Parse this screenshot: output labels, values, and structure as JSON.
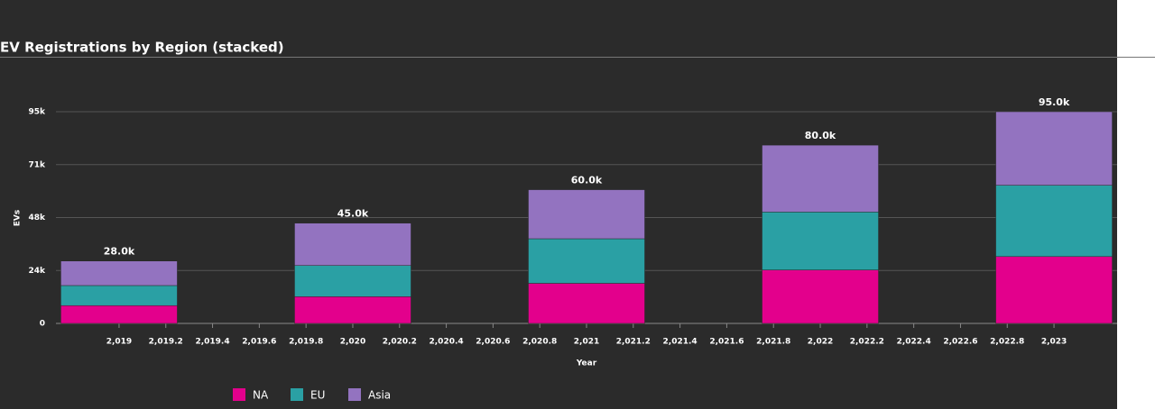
{
  "chart_data": {
    "type": "stacked_bar",
    "title": "EV Registrations by Region (stacked)",
    "x_label": "Year",
    "y_label": "EVs",
    "x": [
      2019,
      2020,
      2021,
      2022,
      2023
    ],
    "series": [
      {
        "name": "NA",
        "color": "#e3008c",
        "values": [
          8000,
          12000,
          18000,
          24000,
          30000
        ]
      },
      {
        "name": "EU",
        "color": "#2aa0a4",
        "values": [
          9000,
          14000,
          20000,
          26000,
          32000
        ]
      },
      {
        "name": "Asia",
        "color": "#9373c0",
        "values": [
          11000,
          19000,
          22000,
          30000,
          33000
        ]
      }
    ],
    "totals": [
      28000,
      45000,
      60000,
      80000,
      95000
    ],
    "total_labels": [
      "28.0k",
      "45.0k",
      "60.0k",
      "80.0k",
      "95.0k"
    ],
    "xlim": [
      2018.73,
      2023.27
    ],
    "ylim": [
      0,
      95000
    ],
    "xticks": [
      {
        "value": 2019,
        "label": "2,019"
      },
      {
        "value": 2019.2,
        "label": "2,019.2"
      },
      {
        "value": 2019.4,
        "label": "2,019.4"
      },
      {
        "value": 2019.6,
        "label": "2,019.6"
      },
      {
        "value": 2019.8,
        "label": "2,019.8"
      },
      {
        "value": 2020,
        "label": "2,020"
      },
      {
        "value": 2020.2,
        "label": "2,020.2"
      },
      {
        "value": 2020.4,
        "label": "2,020.4"
      },
      {
        "value": 2020.6,
        "label": "2,020.6"
      },
      {
        "value": 2020.8,
        "label": "2,020.8"
      },
      {
        "value": 2021,
        "label": "2,021"
      },
      {
        "value": 2021.2,
        "label": "2,021.2"
      },
      {
        "value": 2021.4,
        "label": "2,021.4"
      },
      {
        "value": 2021.6,
        "label": "2,021.6"
      },
      {
        "value": 2021.8,
        "label": "2,021.8"
      },
      {
        "value": 2022,
        "label": "2,022"
      },
      {
        "value": 2022.2,
        "label": "2,022.2"
      },
      {
        "value": 2022.4,
        "label": "2,022.4"
      },
      {
        "value": 2022.6,
        "label": "2,022.6"
      },
      {
        "value": 2022.8,
        "label": "2,022.8"
      },
      {
        "value": 2023,
        "label": "2,023"
      }
    ],
    "yticks": [
      0,
      {
        "value": 23750,
        "label": "24k"
      },
      {
        "value": 47500,
        "label": "48k"
      },
      {
        "value": 71250,
        "label": "71k"
      },
      {
        "value": 95000,
        "label": "95k"
      }
    ],
    "grid": true
  }
}
